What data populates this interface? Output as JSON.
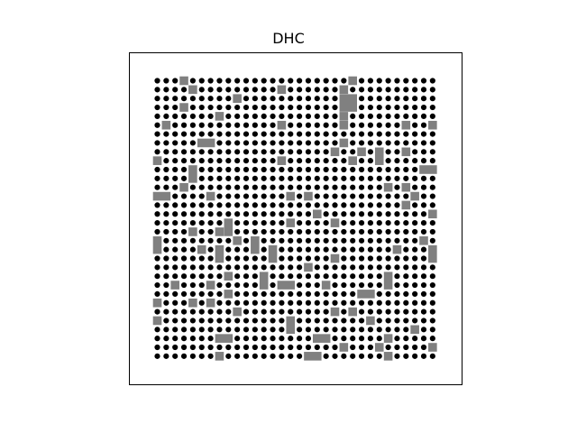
{
  "title": "DHC",
  "colors": {
    "background": "#ffffff",
    "dot": "#000000",
    "dot_ring": "#ffffff",
    "tile": "#808080",
    "frame": "#000000"
  },
  "lattice": {
    "columns": 32,
    "rows": 32
  },
  "tiles": [
    {
      "c": 3,
      "r": 0,
      "w": 1,
      "h": 1
    },
    {
      "c": 22,
      "r": 0,
      "w": 1,
      "h": 1
    },
    {
      "c": 4,
      "r": 1,
      "w": 1,
      "h": 1
    },
    {
      "c": 14,
      "r": 1,
      "w": 1,
      "h": 1
    },
    {
      "c": 21,
      "r": 1,
      "w": 1,
      "h": 1
    },
    {
      "c": 9,
      "r": 2,
      "w": 1,
      "h": 1
    },
    {
      "c": 21,
      "r": 2,
      "w": 2,
      "h": 2
    },
    {
      "c": 3,
      "r": 3,
      "w": 1,
      "h": 1
    },
    {
      "c": 7,
      "r": 4,
      "w": 1,
      "h": 1
    },
    {
      "c": 21,
      "r": 4,
      "w": 1,
      "h": 1
    },
    {
      "c": 1,
      "r": 5,
      "w": 1,
      "h": 1
    },
    {
      "c": 14,
      "r": 5,
      "w": 1,
      "h": 1
    },
    {
      "c": 21,
      "r": 5,
      "w": 1,
      "h": 1
    },
    {
      "c": 28,
      "r": 5,
      "w": 1,
      "h": 1
    },
    {
      "c": 31,
      "r": 5,
      "w": 1,
      "h": 1
    },
    {
      "c": 5,
      "r": 7,
      "w": 2,
      "h": 1
    },
    {
      "c": 21,
      "r": 7,
      "w": 1,
      "h": 1
    },
    {
      "c": 20,
      "r": 8,
      "w": 1,
      "h": 1
    },
    {
      "c": 23,
      "r": 8,
      "w": 1,
      "h": 1
    },
    {
      "c": 25,
      "r": 8,
      "w": 1,
      "h": 2
    },
    {
      "c": 28,
      "r": 8,
      "w": 1,
      "h": 1
    },
    {
      "c": 0,
      "r": 9,
      "w": 1,
      "h": 1
    },
    {
      "c": 14,
      "r": 9,
      "w": 1,
      "h": 1
    },
    {
      "c": 22,
      "r": 9,
      "w": 1,
      "h": 1
    },
    {
      "c": 4,
      "r": 10,
      "w": 1,
      "h": 2
    },
    {
      "c": 30,
      "r": 10,
      "w": 2,
      "h": 1
    },
    {
      "c": 3,
      "r": 12,
      "w": 1,
      "h": 1
    },
    {
      "c": 26,
      "r": 12,
      "w": 1,
      "h": 1
    },
    {
      "c": 28,
      "r": 12,
      "w": 1,
      "h": 1
    },
    {
      "c": 0,
      "r": 13,
      "w": 2,
      "h": 1
    },
    {
      "c": 6,
      "r": 13,
      "w": 1,
      "h": 1
    },
    {
      "c": 15,
      "r": 13,
      "w": 1,
      "h": 1
    },
    {
      "c": 17,
      "r": 13,
      "w": 1,
      "h": 1
    },
    {
      "c": 29,
      "r": 13,
      "w": 1,
      "h": 1
    },
    {
      "c": 28,
      "r": 14,
      "w": 1,
      "h": 1
    },
    {
      "c": 18,
      "r": 15,
      "w": 1,
      "h": 1
    },
    {
      "c": 31,
      "r": 15,
      "w": 1,
      "h": 1
    },
    {
      "c": 8,
      "r": 16,
      "w": 1,
      "h": 2
    },
    {
      "c": 15,
      "r": 16,
      "w": 1,
      "h": 1
    },
    {
      "c": 20,
      "r": 16,
      "w": 1,
      "h": 1
    },
    {
      "c": 7,
      "r": 17,
      "w": 1,
      "h": 1
    },
    {
      "c": 4,
      "r": 17,
      "w": 1,
      "h": 1
    },
    {
      "c": 0,
      "r": 18,
      "w": 1,
      "h": 2
    },
    {
      "c": 9,
      "r": 18,
      "w": 1,
      "h": 1
    },
    {
      "c": 11,
      "r": 18,
      "w": 1,
      "h": 2
    },
    {
      "c": 30,
      "r": 18,
      "w": 1,
      "h": 1
    },
    {
      "c": 5,
      "r": 19,
      "w": 1,
      "h": 1
    },
    {
      "c": 7,
      "r": 19,
      "w": 1,
      "h": 2
    },
    {
      "c": 13,
      "r": 19,
      "w": 1,
      "h": 2
    },
    {
      "c": 27,
      "r": 19,
      "w": 1,
      "h": 1
    },
    {
      "c": 31,
      "r": 19,
      "w": 1,
      "h": 2
    },
    {
      "c": 20,
      "r": 20,
      "w": 1,
      "h": 1
    },
    {
      "c": 17,
      "r": 21,
      "w": 1,
      "h": 1
    },
    {
      "c": 8,
      "r": 22,
      "w": 1,
      "h": 1
    },
    {
      "c": 12,
      "r": 22,
      "w": 1,
      "h": 2
    },
    {
      "c": 26,
      "r": 22,
      "w": 1,
      "h": 2
    },
    {
      "c": 2,
      "r": 23,
      "w": 1,
      "h": 1
    },
    {
      "c": 6,
      "r": 23,
      "w": 1,
      "h": 1
    },
    {
      "c": 14,
      "r": 23,
      "w": 2,
      "h": 1
    },
    {
      "c": 19,
      "r": 23,
      "w": 1,
      "h": 1
    },
    {
      "c": 8,
      "r": 24,
      "w": 1,
      "h": 1
    },
    {
      "c": 23,
      "r": 24,
      "w": 2,
      "h": 1
    },
    {
      "c": 0,
      "r": 25,
      "w": 1,
      "h": 1
    },
    {
      "c": 4,
      "r": 25,
      "w": 1,
      "h": 1
    },
    {
      "c": 6,
      "r": 25,
      "w": 1,
      "h": 1
    },
    {
      "c": 9,
      "r": 26,
      "w": 1,
      "h": 1
    },
    {
      "c": 20,
      "r": 26,
      "w": 1,
      "h": 1
    },
    {
      "c": 22,
      "r": 26,
      "w": 1,
      "h": 1
    },
    {
      "c": 0,
      "r": 27,
      "w": 1,
      "h": 1
    },
    {
      "c": 15,
      "r": 27,
      "w": 1,
      "h": 2
    },
    {
      "c": 24,
      "r": 27,
      "w": 1,
      "h": 1
    },
    {
      "c": 29,
      "r": 28,
      "w": 1,
      "h": 1
    },
    {
      "c": 7,
      "r": 29,
      "w": 2,
      "h": 1
    },
    {
      "c": 18,
      "r": 29,
      "w": 2,
      "h": 1
    },
    {
      "c": 26,
      "r": 29,
      "w": 1,
      "h": 1
    },
    {
      "c": 21,
      "r": 30,
      "w": 1,
      "h": 1
    },
    {
      "c": 25,
      "r": 30,
      "w": 1,
      "h": 1
    },
    {
      "c": 31,
      "r": 30,
      "w": 1,
      "h": 1
    },
    {
      "c": 7,
      "r": 31,
      "w": 1,
      "h": 1
    },
    {
      "c": 17,
      "r": 31,
      "w": 2,
      "h": 1
    },
    {
      "c": 26,
      "r": 31,
      "w": 1,
      "h": 1
    }
  ]
}
